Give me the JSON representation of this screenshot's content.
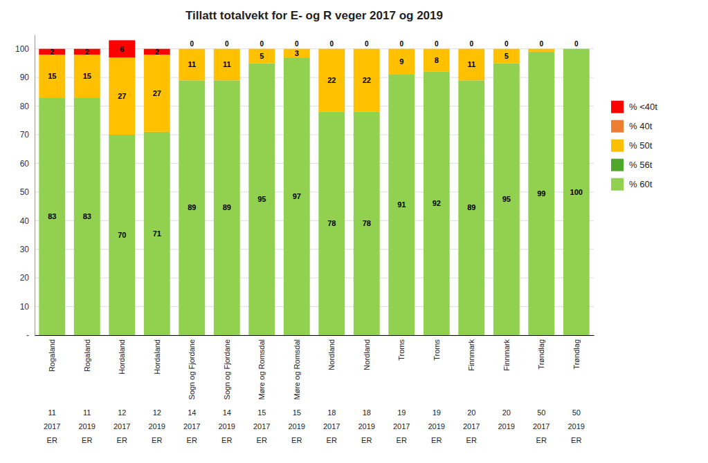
{
  "chart_data": {
    "type": "bar",
    "title": "Tillatt totalvekt for E- og R veger 2017 og 2019",
    "stacked": true,
    "grid": true,
    "legend": "right",
    "categories": [
      [
        "Rogaland",
        "11",
        "2017",
        "ER"
      ],
      [
        "Rogaland",
        "11",
        "2019",
        "ER"
      ],
      [
        "Hordaland",
        "12",
        "2017",
        "ER"
      ],
      [
        "Hordaland",
        "12",
        "2019",
        "ER"
      ],
      [
        "Sogn og Fjordane",
        "14",
        "2017",
        "ER"
      ],
      [
        "Sogn og Fjordane",
        "14",
        "2019",
        "ER"
      ],
      [
        "Møre og Romsdal",
        "15",
        "2017",
        "ER"
      ],
      [
        "Møre og Romsdal",
        "15",
        "2019",
        "ER"
      ],
      [
        "Nordland",
        "18",
        "2017",
        "ER"
      ],
      [
        "Nordland",
        "18",
        "2019",
        "ER"
      ],
      [
        "Troms",
        "19",
        "2017",
        "ER"
      ],
      [
        "Troms",
        "19",
        "2019",
        "ER"
      ],
      [
        "Finnmark",
        "20",
        "2017",
        "ER"
      ],
      [
        "Finnmark",
        "20",
        "2019"
      ],
      [
        "Trøndlag",
        "50",
        "2017",
        "ER"
      ],
      [
        "Trøndlag",
        "50",
        "2019",
        "ER"
      ]
    ],
    "series": [
      {
        "name": "% 60t",
        "color": "#92D050",
        "data_labels": true,
        "values": [
          83,
          83,
          70,
          71,
          89,
          89,
          95,
          97,
          78,
          78,
          91,
          92,
          89,
          95,
          99,
          100
        ]
      },
      {
        "name": "% 56t",
        "color": "#4EA72A",
        "values": [
          0,
          0,
          0,
          0,
          0,
          0,
          0,
          0,
          0,
          0,
          0,
          0,
          0,
          0,
          0,
          0
        ]
      },
      {
        "name": "% 50t",
        "color": "#FFC000",
        "data_labels": true,
        "values": [
          15,
          15,
          27,
          27,
          11,
          11,
          5,
          3,
          22,
          22,
          9,
          8,
          11,
          5,
          1,
          0
        ],
        "value_labels": [
          "15",
          "15",
          "27",
          "27",
          "11",
          "11",
          "5",
          "3",
          "22",
          "22",
          "9",
          "8",
          "11",
          "5",
          null,
          null
        ]
      },
      {
        "name": "% 40t",
        "color": "#ED7D31",
        "values": [
          0,
          0,
          0,
          0,
          0,
          0,
          0,
          0,
          0,
          0,
          0,
          0,
          0,
          0,
          0,
          0
        ]
      },
      {
        "name": "% <40t",
        "color": "#FF0000",
        "data_labels": true,
        "values": [
          2,
          2,
          6,
          2,
          0,
          0,
          0,
          0,
          0,
          0,
          0,
          0,
          0,
          0,
          0,
          0
        ]
      }
    ],
    "ylim": [
      0,
      105
    ],
    "yticks": [
      {
        "value": 0,
        "label": "-"
      },
      10,
      20,
      30,
      40,
      50,
      60,
      70,
      80,
      90,
      100
    ]
  }
}
